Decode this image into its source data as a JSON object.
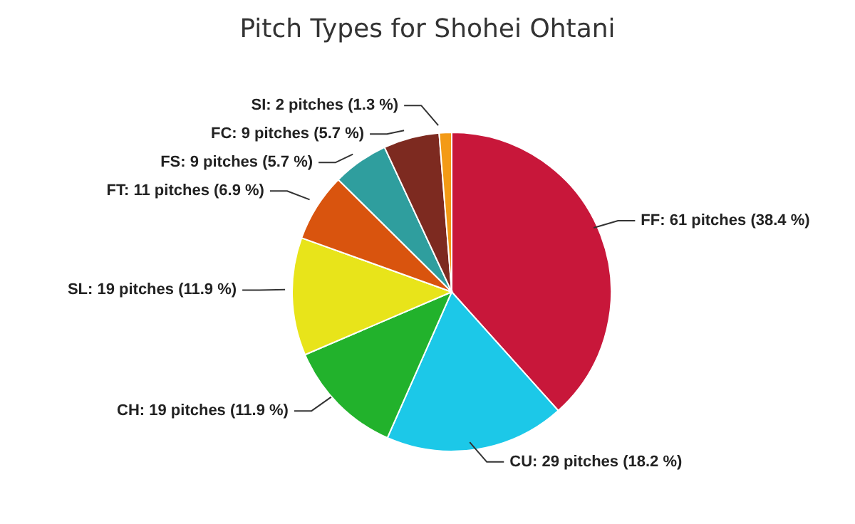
{
  "chart_data": {
    "type": "pie",
    "title": "Pitch Types for Shohei Ohtani",
    "categories": [
      "FF",
      "CU",
      "CH",
      "SL",
      "FT",
      "FS",
      "FC",
      "SI"
    ],
    "values": [
      61,
      29,
      19,
      19,
      11,
      9,
      9,
      2
    ],
    "value_labels": [
      "61 pitches (38.4 %)",
      "29 pitches (18.2 %)",
      "19 pitches (11.9 %)",
      "19 pitches (11.9 %)",
      "11 pitches (6.9 %)",
      "9 pitches (5.7 %)",
      "9 pitches (5.7 %)",
      "2 pitches (1.3 %)"
    ],
    "colors": [
      "#c8173a",
      "#1cc8e8",
      "#22b22c",
      "#e8e41a",
      "#d9540e",
      "#2f9e9e",
      "#7d2a20",
      "#f39a16"
    ],
    "legend": false
  }
}
